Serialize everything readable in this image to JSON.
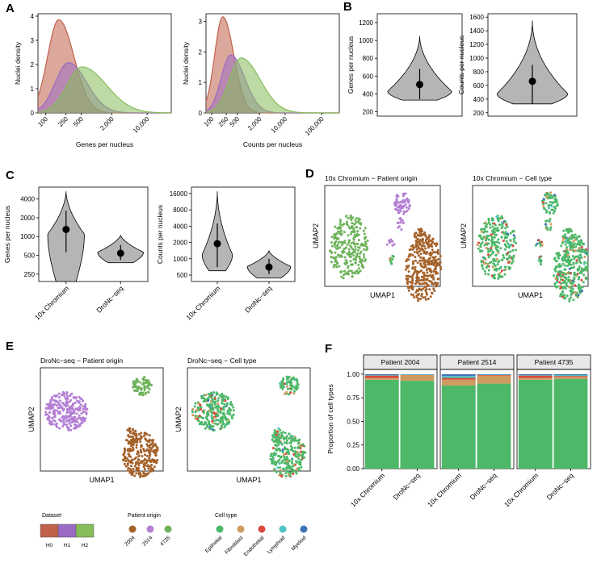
{
  "colors": {
    "H0": "#c0614a",
    "H1": "#9a6bc4",
    "H2": "#86bc5a",
    "p2004": "#a5622a",
    "p2514": "#b47fd4",
    "p4735": "#6eb35a",
    "Epithelial": "#4cb868",
    "Fibroblast": "#cf9a5e",
    "Endothelial": "#d74b3d",
    "Lymphoid": "#4ec4c4",
    "Myeloid": "#3f73b7",
    "violin": "#b5b5b5",
    "facet_strip": "#e8e8e8"
  },
  "panel_letters": [
    "A",
    "B",
    "C",
    "D",
    "E",
    "F"
  ],
  "chart_data": [
    {
      "id": "A1",
      "type": "area",
      "xscale": "log",
      "xlabel": "Genes per nucleus",
      "ylabel": "Nuclei density",
      "xticks": [
        100,
        250,
        500,
        2000,
        10000
      ],
      "xtick_labels": [
        "100",
        "250",
        "500",
        "2,000",
        "10,000"
      ],
      "xlim": [
        70,
        30000
      ],
      "yticks": [
        0,
        1,
        2,
        3,
        4
      ],
      "ylim": [
        0,
        4.1
      ],
      "series": [
        {
          "name": "H0",
          "peak_x": 180,
          "peak_y": 3.85,
          "left_sigma": 0.22,
          "right_sigma": 0.3
        },
        {
          "name": "H1",
          "peak_x": 280,
          "peak_y": 2.08,
          "left_sigma": 0.26,
          "right_sigma": 0.36
        },
        {
          "name": "H2",
          "peak_x": 520,
          "peak_y": 1.9,
          "left_sigma": 0.3,
          "right_sigma": 0.48
        }
      ]
    },
    {
      "id": "A2",
      "type": "area",
      "xscale": "log",
      "xlabel": "Counts per nucleus",
      "ylabel": "Nuclei density",
      "xticks": [
        100,
        250,
        500,
        2000,
        10000,
        100000
      ],
      "xtick_labels": [
        "100",
        "250",
        "500",
        "2,000",
        "10,000",
        "100,000"
      ],
      "xlim": [
        70,
        300000
      ],
      "yticks": [
        0,
        1,
        2,
        3
      ],
      "ylim": [
        0,
        3.25
      ],
      "series": [
        {
          "name": "H0",
          "peak_x": 200,
          "peak_y": 3.15,
          "left_sigma": 0.22,
          "right_sigma": 0.3
        },
        {
          "name": "H1",
          "peak_x": 330,
          "peak_y": 1.9,
          "left_sigma": 0.26,
          "right_sigma": 0.38
        },
        {
          "name": "H2",
          "peak_x": 630,
          "peak_y": 1.8,
          "left_sigma": 0.32,
          "right_sigma": 0.52
        }
      ]
    },
    {
      "id": "B1",
      "type": "violin",
      "yscale": "linear",
      "ylabel": "Genes per nucleus",
      "yticks": [
        200,
        400,
        600,
        800,
        1000,
        1200
      ],
      "ylim": [
        150,
        1300
      ],
      "groups": [
        {
          "name": "",
          "min": 330,
          "max": 1050,
          "median": 505,
          "q1": 340,
          "q3": 680,
          "mode": 430,
          "width": 0.9,
          "tail": 0.55
        }
      ]
    },
    {
      "id": "B2",
      "type": "violin",
      "yscale": "linear",
      "ylabel": "Counts per nucleus",
      "yticks": [
        200,
        400,
        600,
        800,
        1000,
        1200,
        1400,
        1600
      ],
      "ylim": [
        150,
        1650
      ],
      "groups": [
        {
          "name": "",
          "min": 330,
          "max": 1550,
          "median": 660,
          "q1": 330,
          "q3": 900,
          "mode": 480,
          "width": 0.95,
          "tail": 0.5
        }
      ]
    },
    {
      "id": "C1",
      "type": "violin",
      "yscale": "log",
      "ylabel": "Genes per nucleus",
      "yticks": [
        250,
        500,
        1000,
        2000,
        4000
      ],
      "ylim": [
        190,
        6200
      ],
      "categories": [
        "10x Chromium",
        "DroNc−seq"
      ],
      "groups": [
        {
          "name": "10x Chromium",
          "min": 190,
          "max": 5300,
          "median": 1300,
          "q1": 560,
          "q3": 2600,
          "mode": 1100,
          "width": 0.8,
          "tail": 0.6
        },
        {
          "name": "DroNc−seq",
          "min": 380,
          "max": 1050,
          "median": 540,
          "q1": 420,
          "q3": 730,
          "mode": 560,
          "width": 1.0,
          "tail": 0.7
        }
      ]
    },
    {
      "id": "C2",
      "type": "violin",
      "yscale": "log",
      "ylabel": "Counts per nucleus",
      "yticks": [
        500,
        1000,
        2000,
        4000,
        8000,
        16000
      ],
      "ylim": [
        380,
        21000
      ],
      "categories": [
        "10x Chromium",
        "DroNc−seq"
      ],
      "groups": [
        {
          "name": "10x Chromium",
          "min": 600,
          "max": 17500,
          "median": 1900,
          "q1": 700,
          "q3": 4500,
          "mode": 1200,
          "width": 0.7,
          "tail": 0.55
        },
        {
          "name": "DroNc−seq",
          "min": 440,
          "max": 1400,
          "median": 700,
          "q1": 520,
          "q3": 1000,
          "mode": 720,
          "width": 1.0,
          "tail": 0.7
        }
      ]
    },
    {
      "id": "D1",
      "type": "scatter",
      "title": "10x Chromium − Patient origin",
      "xlabel": "UMAP1",
      "ylabel": "UMAP2",
      "color_by": "patient",
      "clusters": [
        {
          "shape": "left-blob",
          "patient": "4735"
        },
        {
          "shape": "top-small",
          "patient": "2514"
        },
        {
          "shape": "right-large",
          "patient": "2004"
        }
      ]
    },
    {
      "id": "D2",
      "type": "scatter",
      "title": "10x Chromium − Cell type",
      "xlabel": "UMAP1",
      "ylabel": "UMAP2",
      "color_by": "cell_type"
    },
    {
      "id": "E1",
      "type": "scatter",
      "title": "DroNc−seq − Patient origin",
      "xlabel": "UMAP1",
      "ylabel": "UMAP2",
      "color_by": "patient",
      "clusters": [
        {
          "shape": "left-blob",
          "patient": "2514"
        },
        {
          "shape": "top-small",
          "patient": "4735"
        },
        {
          "shape": "right-large",
          "patient": "2004"
        }
      ]
    },
    {
      "id": "E2",
      "type": "scatter",
      "title": "DroNc−seq − Cell type",
      "xlabel": "UMAP1",
      "ylabel": "UMAP2",
      "color_by": "cell_type"
    },
    {
      "id": "F",
      "type": "bar",
      "stacked": true,
      "ylabel": "Proportion of cell types",
      "yticks": [
        0,
        0.25,
        0.5,
        0.75,
        1.0
      ],
      "ytick_labels": [
        "0.00",
        "0.25",
        "0.50",
        "0.75",
        "1.00"
      ],
      "ylim": [
        0,
        1.05
      ],
      "stack_order": [
        "Epithelial",
        "Fibroblast",
        "Endothelial",
        "Lymphoid",
        "Myeloid"
      ],
      "categories": [
        "10x Chromium",
        "DroNc−seq"
      ],
      "facets": [
        {
          "title": "Patient 2004",
          "bars": [
            {
              "Epithelial": 0.94,
              "Fibroblast": 0.02,
              "Endothelial": 0.025,
              "Lymphoid": 0.005,
              "Myeloid": 0.01
            },
            {
              "Epithelial": 0.93,
              "Fibroblast": 0.06,
              "Endothelial": 0.002,
              "Lymphoid": 0.004,
              "Myeloid": 0.004
            }
          ]
        },
        {
          "title": "Patient 2514",
          "bars": [
            {
              "Epithelial": 0.88,
              "Fibroblast": 0.06,
              "Endothelial": 0.02,
              "Lymphoid": 0.02,
              "Myeloid": 0.02
            },
            {
              "Epithelial": 0.9,
              "Fibroblast": 0.085,
              "Endothelial": 0.005,
              "Lymphoid": 0.005,
              "Myeloid": 0.005
            }
          ]
        },
        {
          "title": "Patient 4735",
          "bars": [
            {
              "Epithelial": 0.94,
              "Fibroblast": 0.02,
              "Endothelial": 0.025,
              "Lymphoid": 0.005,
              "Myeloid": 0.01
            },
            {
              "Epithelial": 0.95,
              "Fibroblast": 0.02,
              "Endothelial": 0.01,
              "Lymphoid": 0.01,
              "Myeloid": 0.01
            }
          ]
        }
      ]
    }
  ],
  "legends": {
    "dataset": {
      "title": "Dataset",
      "items": [
        "H0",
        "H1",
        "H2"
      ]
    },
    "patient": {
      "title": "Patient origin",
      "items": [
        "2004",
        "2514",
        "4735"
      ]
    },
    "cell_type": {
      "title": "Cell type",
      "items": [
        "Epithelial",
        "Fibroblast",
        "Endothelial",
        "Lymphoid",
        "Myeloid"
      ]
    }
  }
}
